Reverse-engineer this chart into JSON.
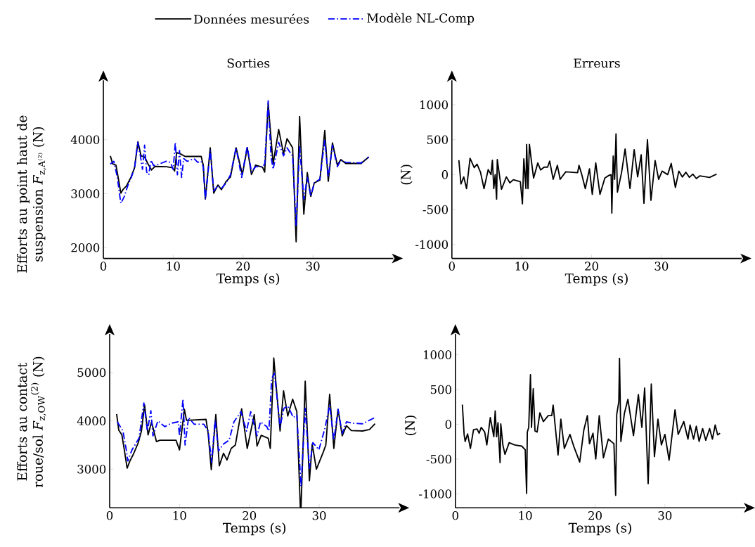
{
  "chart_data": [
    {
      "type": "line",
      "title": "Sorties",
      "xlabel": "Temps (s)",
      "ylabel": "Efforts au point haut de suspension *F*$_{z,A⁽²⁾}$ (N)",
      "xlim": [
        0,
        41.5
      ],
      "ylim": [
        1800,
        5100
      ],
      "xticks": [
        0,
        10,
        20,
        30
      ],
      "yticks": [
        2000,
        3000,
        4000
      ],
      "legend": "top",
      "series": [
        {
          "name": "Données mesurées",
          "color": "#000000",
          "line_style": "solid",
          "x": [
            1.0,
            1.34,
            1.8,
            2.16,
            2.5,
            2.8,
            3.3,
            3.97,
            4.46,
            4.95,
            5.4,
            5.9,
            6.4,
            6.9,
            7.4,
            9.05,
            9.9,
            10.2,
            10.5,
            11.0,
            11.7,
            14.0,
            14.3,
            14.6,
            15.3,
            15.8,
            16.4,
            16.9,
            17.6,
            18.2,
            19.0,
            19.9,
            20.6,
            21.2,
            21.8,
            22.8,
            23.1,
            23.6,
            24.3,
            25.1,
            25.8,
            26.3,
            27.1,
            27.6,
            28.1,
            28.7,
            29.2,
            29.7,
            30.2,
            31.0,
            31.7,
            32.2,
            32.8,
            33.5,
            34.0,
            34.7,
            36.9,
            38.0
          ],
          "values": [
            3700,
            3550,
            3530,
            3270,
            3010,
            3075,
            3140,
            3310,
            3480,
            3960,
            3700,
            3680,
            3550,
            3440,
            3505,
            3500,
            3480,
            3420,
            3760,
            3740,
            3690,
            3690,
            3530,
            2900,
            3850,
            3010,
            3160,
            3075,
            3230,
            3310,
            3850,
            3355,
            3850,
            3355,
            3530,
            3490,
            3400,
            4670,
            3550,
            4190,
            3740,
            4020,
            3850,
            2110,
            4430,
            2620,
            3390,
            2950,
            3200,
            3250,
            4170,
            3230,
            3940,
            3530,
            3630,
            3560,
            3560,
            3680
          ]
        },
        {
          "name": "Modèle NL-Comp",
          "color": "#0000ff",
          "line_style": "dashdot",
          "x": [
            1,
            1.5,
            2,
            2.5,
            3,
            3.5,
            4,
            4.5,
            4.9,
            5.3,
            5.6,
            5.9,
            6.2,
            6.5,
            6.8,
            7.2,
            8,
            9,
            9.6,
            10,
            10.3,
            10.6,
            10.9,
            11.2,
            11.5,
            12,
            13,
            13.5,
            14,
            14.3,
            14.6,
            15.3,
            15.8,
            16.4,
            16.9,
            17.6,
            18.2,
            19,
            19.8,
            20.6,
            21.2,
            21.8,
            22.8,
            23.1,
            23.6,
            24,
            24.3,
            25.1,
            25.8,
            26.3,
            26.8,
            27.1,
            27.6,
            28.1,
            28.7,
            29.2,
            29.7,
            30.2,
            31,
            31.7,
            32.2,
            32.8,
            33.5,
            34,
            34.7,
            36.9,
            38
          ],
          "values": [
            3550,
            3600,
            3300,
            2820,
            2950,
            3150,
            3300,
            3500,
            3950,
            3700,
            3450,
            3900,
            3400,
            3350,
            3620,
            3520,
            3550,
            3600,
            3580,
            3450,
            3950,
            3350,
            3800,
            3300,
            3650,
            3600,
            3650,
            3580,
            3600,
            3500,
            2900,
            3800,
            3050,
            3150,
            3100,
            3200,
            3350,
            3850,
            3300,
            3880,
            3400,
            3500,
            3500,
            3550,
            4720,
            3700,
            3450,
            3950,
            3700,
            3850,
            3750,
            3700,
            2400,
            3870,
            2900,
            3300,
            2950,
            3200,
            3270,
            4000,
            3300,
            3900,
            3500,
            3620,
            3580,
            3570,
            3680
          ]
        }
      ]
    },
    {
      "type": "line",
      "title": "Erreurs",
      "xlabel": "Temps (s)",
      "ylabel": "(N)",
      "xlim": [
        0,
        41.5
      ],
      "ylim": [
        -1200,
        1350
      ],
      "xticks": [
        0,
        10,
        20,
        30
      ],
      "yticks": [
        -1000,
        -500,
        0,
        500,
        1000
      ],
      "series": [
        {
          "color": "#000000",
          "line_style": "solid",
          "x": [
            1.0,
            1.3,
            1.7,
            2.1,
            2.6,
            3.2,
            3.6,
            4.1,
            4.6,
            5.2,
            5.6,
            5.8,
            6.0,
            6.2,
            6.4,
            6.5,
            6.8,
            7.1,
            7.8,
            8.3,
            8.8,
            9.8,
            10.1,
            10.3,
            10.6,
            10.7,
            10.9,
            11.1,
            11.4,
            11.7,
            12.3,
            12.7,
            13.2,
            13.7,
            14.0,
            14.5,
            15.1,
            15.5,
            16.3,
            18.0,
            18.2,
            18.6,
            19.1,
            19.7,
            20.1,
            20.6,
            21.2,
            21.9,
            22.5,
            22.8,
            22.9,
            23.1,
            23.3,
            23.5,
            23.7,
            24.3,
            24.8,
            25.5,
            26.1,
            26.6,
            27.1,
            27.5,
            28.0,
            28.5,
            29.1,
            29.6,
            30.1,
            30.9,
            31.4,
            32.0,
            32.5,
            33.0,
            33.5,
            34.0,
            34.5,
            35.0,
            35.5,
            36.9,
            37.9
          ],
          "values": [
            207,
            -133,
            -33,
            -200,
            233,
            100,
            150,
            33,
            -200,
            73,
            0,
            207,
            -200,
            0,
            -350,
            217,
            0,
            -210,
            -33,
            -117,
            -73,
            -100,
            -417,
            227,
            -200,
            433,
            -200,
            433,
            183,
            -50,
            167,
            67,
            107,
            107,
            193,
            -67,
            133,
            -67,
            40,
            27,
            133,
            0,
            -200,
            83,
            -283,
            167,
            -283,
            -50,
            -10,
            0,
            -550,
            267,
            -67,
            583,
            -250,
            33,
            367,
            -200,
            357,
            -33,
            283,
            -410,
            500,
            -367,
            200,
            -67,
            50,
            0,
            160,
            -183,
            50,
            -33,
            33,
            -40,
            7,
            -57,
            -17,
            -40,
            7
          ]
        }
      ]
    },
    {
      "type": "line",
      "xlabel": "Temps (s)",
      "ylabel": "Efforts au contact roue/sol *F*$_{z,O}$$_{W}$$^{(2)}$ (N)",
      "xlim": [
        0,
        41.5
      ],
      "ylim": [
        2200,
        5800
      ],
      "xticks": [
        0,
        10,
        20,
        30
      ],
      "yticks": [
        3000,
        4000,
        5000
      ],
      "series": [
        {
          "color": "#000000",
          "line_style": "solid",
          "x": [
            1.0,
            1.3,
            1.75,
            2.1,
            2.5,
            2.9,
            3.4,
            4.1,
            4.55,
            5.0,
            5.5,
            6.0,
            6.7,
            7.2,
            9.5,
            10.0,
            10.7,
            11.0,
            13.8,
            14.1,
            14.55,
            15.2,
            15.7,
            16.3,
            16.8,
            17.4,
            18.0,
            18.9,
            19.7,
            20.7,
            21.1,
            21.7,
            22.7,
            23.0,
            23.5,
            24.4,
            24.9,
            25.5,
            26.2,
            26.8,
            27.3,
            27.4,
            28.0,
            28.6,
            29.0,
            29.6,
            30.6,
            30.95,
            31.5,
            32.1,
            32.7,
            33.3,
            33.9,
            34.6,
            36.2,
            37.2,
            38.0
          ],
          "values": [
            4140,
            3810,
            3710,
            3400,
            3020,
            3170,
            3310,
            3550,
            3790,
            4330,
            3710,
            3980,
            3570,
            3600,
            3600,
            3400,
            4240,
            4010,
            4030,
            3740,
            2990,
            4130,
            3070,
            3330,
            3190,
            3430,
            3500,
            4250,
            3430,
            4130,
            3480,
            3700,
            3640,
            3430,
            5300,
            3790,
            4620,
            4100,
            4450,
            4190,
            2210,
            2200,
            4820,
            2760,
            3520,
            3000,
            3360,
            3500,
            4550,
            3430,
            4240,
            3690,
            3900,
            3800,
            3790,
            3820,
            3940
          ]
        },
        {
          "color": "#0000ff",
          "line_style": "dashdot",
          "x": [
            1.1,
            1.9,
            2.4,
            2.6,
            3.2,
            4.2,
            4.9,
            5.4,
            5.9,
            6.2,
            6.9,
            7.9,
            8.8,
            9.8,
            10.0,
            10.5,
            10.8,
            11.3,
            12.1,
            13.5,
            14.1,
            14.6,
            15.1,
            15.6,
            16.3,
            17.1,
            17.8,
            18.8,
            19.6,
            20.2,
            21.1,
            21.6,
            22.5,
            22.8,
            23.2,
            23.6,
            24.4,
            24.95,
            25.5,
            26.3,
            26.8,
            27.4,
            28.0,
            28.6,
            29.1,
            29.95,
            30.8,
            31.5,
            32.1,
            32.7,
            33.3,
            33.9,
            34.9,
            36.2,
            38.0
          ],
          "values": [
            3980,
            3790,
            3380,
            3170,
            3400,
            3640,
            4370,
            3790,
            4210,
            3690,
            4000,
            3880,
            3950,
            3980,
            3690,
            4450,
            3500,
            4070,
            3930,
            3930,
            3790,
            3140,
            4020,
            3380,
            3520,
            3600,
            3980,
            4190,
            3790,
            4190,
            3690,
            3980,
            3880,
            3790,
            4880,
            4980,
            3880,
            4260,
            4310,
            4070,
            4120,
            2640,
            4260,
            3020,
            3550,
            3400,
            3830,
            4330,
            3600,
            4240,
            3740,
            3980,
            3950,
            3940,
            4070
          ]
        }
      ]
    },
    {
      "type": "line",
      "xlabel": "Temps (s)",
      "ylabel": "(N)",
      "xlim": [
        0,
        41.5
      ],
      "ylim": [
        -1200,
        1300
      ],
      "xticks": [
        0,
        10,
        20,
        30
      ],
      "yticks": [
        -1000,
        -500,
        0,
        500,
        1000
      ],
      "series": [
        {
          "color": "#000000",
          "line_style": "solid",
          "x": [
            1.0,
            1.25,
            1.4,
            1.75,
            2.15,
            2.6,
            3.1,
            3.4,
            3.7,
            4.2,
            4.5,
            5.0,
            5.5,
            5.7,
            5.9,
            6.1,
            6.4,
            6.5,
            6.8,
            7.1,
            7.7,
            8.5,
            9.5,
            10.0,
            10.2,
            10.3,
            10.5,
            10.75,
            10.9,
            11.15,
            11.4,
            11.7,
            12.1,
            12.6,
            13.3,
            13.8,
            14.0,
            14.7,
            15.1,
            15.6,
            16.4,
            17.0,
            17.8,
            18.4,
            18.9,
            19.2,
            19.7,
            20.1,
            20.6,
            21.2,
            21.9,
            22.7,
            22.95,
            23.1,
            23.4,
            23.5,
            23.7,
            24.2,
            24.7,
            25.5,
            26.2,
            26.7,
            27.1,
            27.6,
            28.05,
            28.5,
            29.0,
            29.5,
            30.0,
            30.6,
            31.45,
            31.9,
            32.7,
            33.3,
            33.6,
            34.1,
            34.5,
            34.9,
            35.4,
            35.85,
            36.4,
            36.8,
            37.2,
            37.55,
            37.9
          ],
          "values": [
            283,
            -145,
            -246,
            -138,
            -347,
            -77,
            -67,
            -128,
            -44,
            -111,
            -296,
            98,
            -178,
            192,
            -178,
            24,
            -549,
            7,
            -296,
            -431,
            -263,
            -296,
            -313,
            -364,
            -993,
            -111,
            -44,
            714,
            -44,
            512,
            -94,
            -111,
            165,
            40,
            125,
            125,
            276,
            -441,
            74,
            -347,
            -145,
            -330,
            -542,
            -77,
            125,
            -279,
            -128,
            -498,
            125,
            -481,
            -212,
            -279,
            -1020,
            141,
            327,
            949,
            -246,
            158,
            360,
            -162,
            428,
            -44,
            522,
            -852,
            579,
            -465,
            74,
            -296,
            -145,
            -515,
            209,
            -145,
            40,
            -212,
            -10,
            -212,
            -27,
            -246,
            -61,
            -229,
            -61,
            -212,
            -10,
            -152,
            -128
          ]
        }
      ]
    }
  ]
}
